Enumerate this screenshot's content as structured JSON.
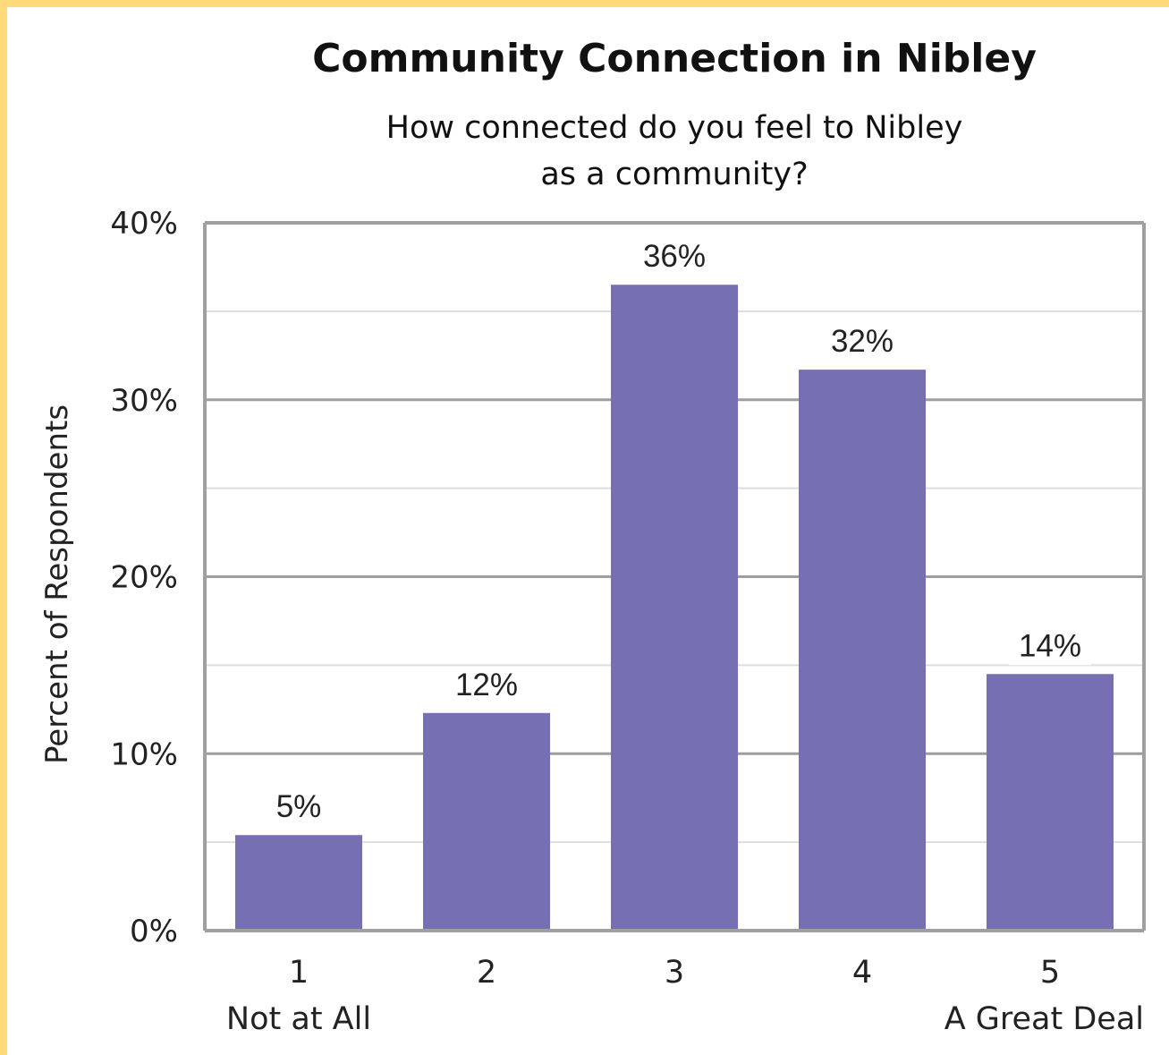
{
  "chart_data": {
    "type": "bar",
    "title": "Community Connection in Nibley",
    "subtitle_lines": [
      "How connected do you feel to Nibley",
      "as a community?"
    ],
    "ylabel": "Percent of Respondents",
    "xlabel": "",
    "categories": [
      "1",
      "2",
      "3",
      "4",
      "5"
    ],
    "category_sublabels": [
      "Not at All",
      "",
      "",
      "",
      "A Great Deal"
    ],
    "values": [
      5.4,
      12.3,
      36.5,
      31.7,
      14.5
    ],
    "data_labels": [
      "5%",
      "12%",
      "36%",
      "32%",
      "14%"
    ],
    "ylim": [
      0,
      40
    ],
    "y_ticks": [
      0,
      10,
      20,
      30,
      40
    ],
    "y_tick_labels": [
      "0%",
      "10%",
      "20%",
      "30%",
      "40%"
    ],
    "grid": true,
    "legend": "none",
    "colors": {
      "bar": "#7670b3",
      "major_grid": "#9e9e9e",
      "minor_grid": "#dddddd",
      "axis": "#a0a0a0",
      "frame_border": "#ffd97a"
    }
  }
}
